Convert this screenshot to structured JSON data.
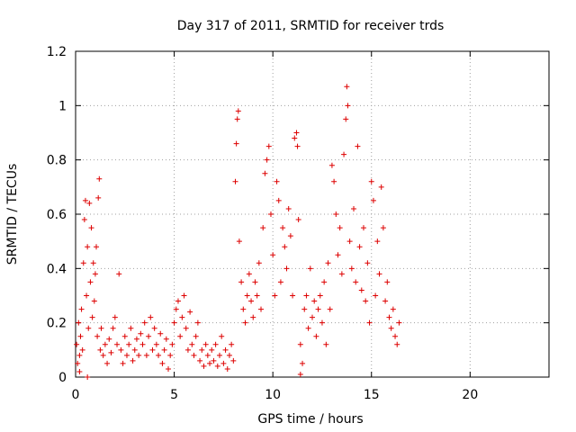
{
  "chart_data": {
    "type": "scatter",
    "title": "Day 317 of 2011, SRMTID for receiver trds",
    "xlabel": "GPS time / hours",
    "ylabel": "SRMTID / TECUs",
    "xlim": [
      0,
      24
    ],
    "ylim": [
      0,
      1.2
    ],
    "xticks": [
      "0",
      "5",
      "10",
      "15",
      "20"
    ],
    "yticks": [
      "0",
      "0.2",
      "0.4",
      "0.6",
      "0.8",
      "1",
      "1.2"
    ],
    "grid": true,
    "legend": "none",
    "marker": "plus",
    "color": "#dd0000",
    "series": [
      {
        "points": [
          [
            0.05,
            0.12
          ],
          [
            0.1,
            0.05
          ],
          [
            0.15,
            0.2
          ],
          [
            0.2,
            0.08
          ],
          [
            0.25,
            0.15
          ],
          [
            0.3,
            0.25
          ],
          [
            0.35,
            0.1
          ],
          [
            0.4,
            0.42
          ],
          [
            0.45,
            0.58
          ],
          [
            0.5,
            0.65
          ],
          [
            0.55,
            0.3
          ],
          [
            0.6,
            0.48
          ],
          [
            0.65,
            0.18
          ],
          [
            0.7,
            0.64
          ],
          [
            0.75,
            0.35
          ],
          [
            0.8,
            0.55
          ],
          [
            0.85,
            0.22
          ],
          [
            0.9,
            0.42
          ],
          [
            0.95,
            0.28
          ],
          [
            1.0,
            0.38
          ],
          [
            1.05,
            0.48
          ],
          [
            1.1,
            0.15
          ],
          [
            1.15,
            0.66
          ],
          [
            1.2,
            0.73
          ],
          [
            1.25,
            0.1
          ],
          [
            1.3,
            0.18
          ],
          [
            1.4,
            0.08
          ],
          [
            1.5,
            0.12
          ],
          [
            1.6,
            0.05
          ],
          [
            1.7,
            0.14
          ],
          [
            1.8,
            0.09
          ],
          [
            1.9,
            0.18
          ],
          [
            2.0,
            0.22
          ],
          [
            2.1,
            0.12
          ],
          [
            2.2,
            0.38
          ],
          [
            2.3,
            0.1
          ],
          [
            2.4,
            0.05
          ],
          [
            2.5,
            0.15
          ],
          [
            2.6,
            0.08
          ],
          [
            2.7,
            0.12
          ],
          [
            2.8,
            0.18
          ],
          [
            2.9,
            0.06
          ],
          [
            3.0,
            0.1
          ],
          [
            3.1,
            0.14
          ],
          [
            3.2,
            0.08
          ],
          [
            3.3,
            0.16
          ],
          [
            3.4,
            0.12
          ],
          [
            3.5,
            0.2
          ],
          [
            3.6,
            0.08
          ],
          [
            3.7,
            0.15
          ],
          [
            3.8,
            0.22
          ],
          [
            3.9,
            0.1
          ],
          [
            4.0,
            0.18
          ],
          [
            4.1,
            0.12
          ],
          [
            4.2,
            0.08
          ],
          [
            4.3,
            0.16
          ],
          [
            4.4,
            0.05
          ],
          [
            4.5,
            0.1
          ],
          [
            4.6,
            0.14
          ],
          [
            4.7,
            0.03
          ],
          [
            4.8,
            0.08
          ],
          [
            4.9,
            0.12
          ],
          [
            5.0,
            0.2
          ],
          [
            5.1,
            0.25
          ],
          [
            5.2,
            0.28
          ],
          [
            5.3,
            0.15
          ],
          [
            5.4,
            0.22
          ],
          [
            5.5,
            0.3
          ],
          [
            5.6,
            0.18
          ],
          [
            5.7,
            0.1
          ],
          [
            5.8,
            0.24
          ],
          [
            5.9,
            0.12
          ],
          [
            6.0,
            0.08
          ],
          [
            6.1,
            0.15
          ],
          [
            6.2,
            0.2
          ],
          [
            6.3,
            0.06
          ],
          [
            6.4,
            0.1
          ],
          [
            6.5,
            0.04
          ],
          [
            6.6,
            0.12
          ],
          [
            6.7,
            0.08
          ],
          [
            6.8,
            0.05
          ],
          [
            6.9,
            0.1
          ],
          [
            7.0,
            0.06
          ],
          [
            7.1,
            0.12
          ],
          [
            7.2,
            0.04
          ],
          [
            7.3,
            0.08
          ],
          [
            7.4,
            0.15
          ],
          [
            7.5,
            0.05
          ],
          [
            7.6,
            0.1
          ],
          [
            7.7,
            0.03
          ],
          [
            7.8,
            0.08
          ],
          [
            7.9,
            0.12
          ],
          [
            8.0,
            0.06
          ],
          [
            8.1,
            0.72
          ],
          [
            8.15,
            0.86
          ],
          [
            8.2,
            0.95
          ],
          [
            8.25,
            0.98
          ],
          [
            8.3,
            0.5
          ],
          [
            8.4,
            0.35
          ],
          [
            8.5,
            0.25
          ],
          [
            8.6,
            0.2
          ],
          [
            8.7,
            0.3
          ],
          [
            8.8,
            0.38
          ],
          [
            8.9,
            0.28
          ],
          [
            9.0,
            0.22
          ],
          [
            9.1,
            0.35
          ],
          [
            9.2,
            0.3
          ],
          [
            9.3,
            0.42
          ],
          [
            9.4,
            0.25
          ],
          [
            9.5,
            0.55
          ],
          [
            9.6,
            0.75
          ],
          [
            9.7,
            0.8
          ],
          [
            9.8,
            0.85
          ],
          [
            9.9,
            0.6
          ],
          [
            10.0,
            0.45
          ],
          [
            10.1,
            0.3
          ],
          [
            10.2,
            0.72
          ],
          [
            10.3,
            0.65
          ],
          [
            10.4,
            0.35
          ],
          [
            10.5,
            0.55
          ],
          [
            10.6,
            0.48
          ],
          [
            10.7,
            0.4
          ],
          [
            10.8,
            0.62
          ],
          [
            10.9,
            0.52
          ],
          [
            11.0,
            0.3
          ],
          [
            11.1,
            0.88
          ],
          [
            11.2,
            0.9
          ],
          [
            11.25,
            0.85
          ],
          [
            11.3,
            0.58
          ],
          [
            11.4,
            0.12
          ],
          [
            11.5,
            0.05
          ],
          [
            11.6,
            0.25
          ],
          [
            11.7,
            0.3
          ],
          [
            11.8,
            0.18
          ],
          [
            11.9,
            0.4
          ],
          [
            12.0,
            0.22
          ],
          [
            12.1,
            0.28
          ],
          [
            12.2,
            0.15
          ],
          [
            12.3,
            0.25
          ],
          [
            12.4,
            0.3
          ],
          [
            12.5,
            0.2
          ],
          [
            12.6,
            0.35
          ],
          [
            12.7,
            0.12
          ],
          [
            12.8,
            0.42
          ],
          [
            12.9,
            0.25
          ],
          [
            13.0,
            0.78
          ],
          [
            13.1,
            0.72
          ],
          [
            13.2,
            0.6
          ],
          [
            13.3,
            0.45
          ],
          [
            13.4,
            0.55
          ],
          [
            13.5,
            0.38
          ],
          [
            13.6,
            0.82
          ],
          [
            13.7,
            0.95
          ],
          [
            13.75,
            1.07
          ],
          [
            13.8,
            1.0
          ],
          [
            13.9,
            0.5
          ],
          [
            14.0,
            0.4
          ],
          [
            14.1,
            0.62
          ],
          [
            14.2,
            0.35
          ],
          [
            14.3,
            0.85
          ],
          [
            14.4,
            0.48
          ],
          [
            14.5,
            0.32
          ],
          [
            14.6,
            0.55
          ],
          [
            14.7,
            0.28
          ],
          [
            14.8,
            0.42
          ],
          [
            14.9,
            0.2
          ],
          [
            15.0,
            0.72
          ],
          [
            15.1,
            0.65
          ],
          [
            15.2,
            0.3
          ],
          [
            15.3,
            0.5
          ],
          [
            15.4,
            0.38
          ],
          [
            15.5,
            0.7
          ],
          [
            15.6,
            0.55
          ],
          [
            15.7,
            0.28
          ],
          [
            15.8,
            0.35
          ],
          [
            15.9,
            0.22
          ],
          [
            16.0,
            0.18
          ],
          [
            16.1,
            0.25
          ],
          [
            16.2,
            0.15
          ],
          [
            16.3,
            0.12
          ],
          [
            16.4,
            0.2
          ],
          [
            0.2,
            0.02
          ],
          [
            0.6,
            0.0
          ],
          [
            11.4,
            0.01
          ]
        ]
      }
    ]
  }
}
